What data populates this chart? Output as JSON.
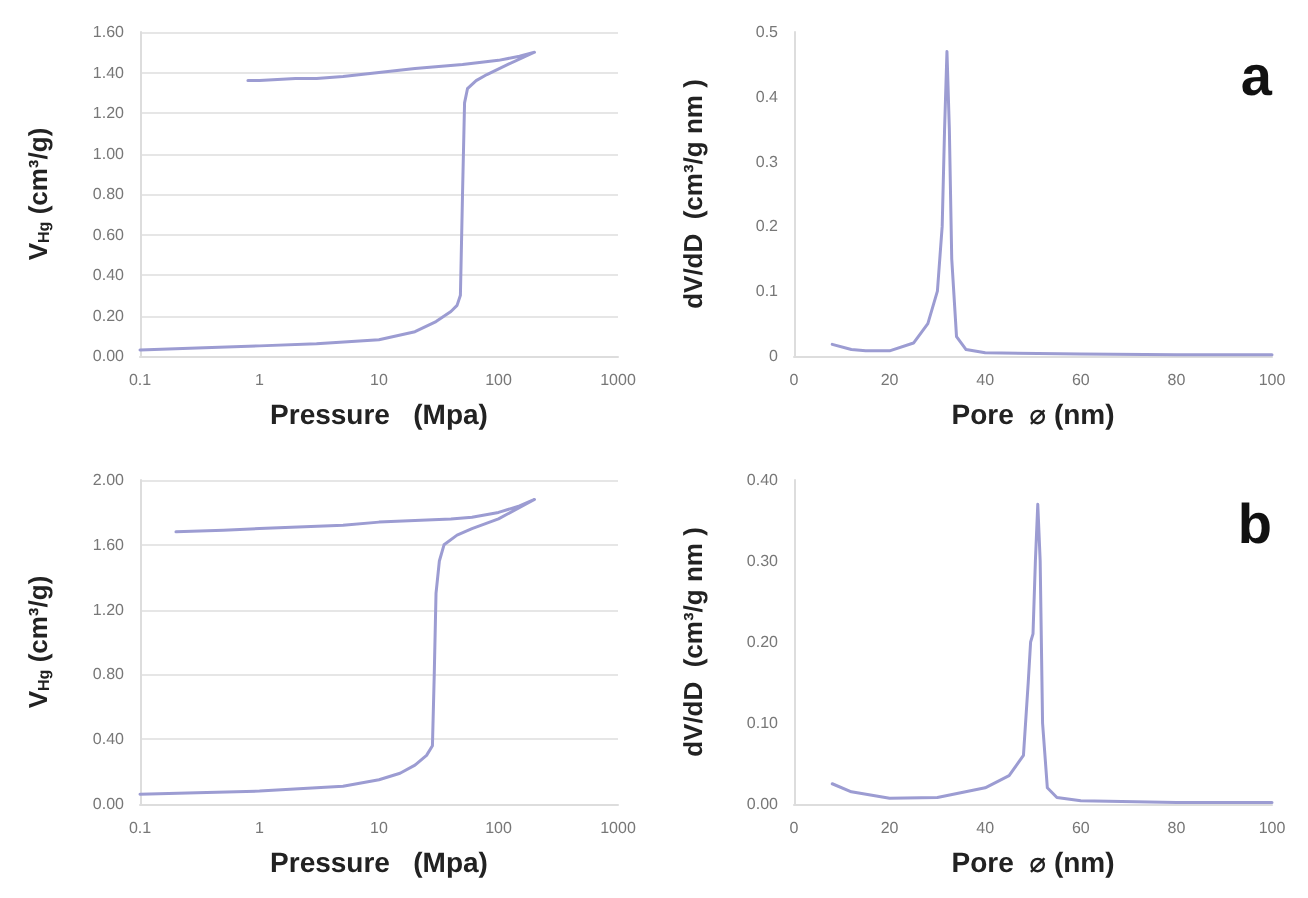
{
  "chart_data": [
    {
      "type": "line",
      "xlabel": "Pressure   (Mpa)",
      "ylabel": "V$_{Hg}$ (cm³/g)",
      "log": "x",
      "grid": "y",
      "marker": "none",
      "line_style": "solid",
      "xlim": [
        0.1,
        1000
      ],
      "xticks": [
        0.1,
        1,
        10,
        100,
        1000
      ],
      "ylim": [
        0,
        1.6
      ],
      "yticks": [
        {
          "value": 0,
          "label": "0.00"
        },
        {
          "value": 0.2,
          "label": "0.20"
        },
        {
          "value": 0.4,
          "label": "0.40"
        },
        {
          "value": 0.6,
          "label": "0.60"
        },
        {
          "value": 0.8,
          "label": "0.80"
        },
        {
          "value": 1,
          "label": "1.00"
        },
        {
          "value": 1.2,
          "label": "1.20"
        },
        {
          "value": 1.4,
          "label": "1.40"
        },
        {
          "value": 1.6,
          "label": "1.60"
        }
      ],
      "series": [
        {
          "color": "#9c9cd2",
          "x": [
            0.1,
            0.3,
            1,
            3,
            10,
            20,
            30,
            40,
            45,
            48,
            50,
            52,
            55,
            65,
            80,
            120,
            200,
            150,
            100,
            50,
            20,
            10,
            5,
            3,
            2,
            1,
            0.8
          ],
          "values": [
            0.03,
            0.04,
            0.05,
            0.06,
            0.08,
            0.12,
            0.17,
            0.22,
            0.25,
            0.3,
            0.8,
            1.25,
            1.32,
            1.36,
            1.39,
            1.44,
            1.5,
            1.48,
            1.46,
            1.44,
            1.42,
            1.4,
            1.38,
            1.37,
            1.37,
            1.36,
            1.36
          ]
        }
      ]
    },
    {
      "type": "line",
      "xlabel": "Pore  ⌀ (nm)",
      "ylabel": "dV/dD  (cm³/g nm )",
      "grid": false,
      "marker": "none",
      "line_style": "solid",
      "xlim": [
        0,
        100
      ],
      "xticks": [
        0,
        20,
        40,
        60,
        80,
        100
      ],
      "ylim": [
        0,
        0.5
      ],
      "yticks": [
        0,
        0.1,
        0.2,
        0.3,
        0.4,
        0.5
      ],
      "annotations": [
        "a"
      ],
      "series": [
        {
          "color": "#9c9cd2",
          "x": [
            8,
            12,
            15,
            20,
            25,
            28,
            30,
            31,
            31.5,
            32,
            32.5,
            33,
            34,
            36,
            40,
            60,
            80,
            100
          ],
          "values": [
            0.018,
            0.01,
            0.008,
            0.008,
            0.02,
            0.05,
            0.1,
            0.2,
            0.35,
            0.47,
            0.35,
            0.15,
            0.03,
            0.01,
            0.005,
            0.003,
            0.002,
            0.002
          ]
        }
      ]
    },
    {
      "type": "line",
      "xlabel": "Pressure   (Mpa)",
      "ylabel": "V$_{Hg}$ (cm³/g)",
      "log": "x",
      "grid": "y",
      "marker": "none",
      "line_style": "solid",
      "xlim": [
        0.1,
        1000
      ],
      "xticks": [
        0.1,
        1,
        10,
        100,
        1000
      ],
      "ylim": [
        0,
        2
      ],
      "yticks": [
        {
          "value": 0,
          "label": "0.00"
        },
        {
          "value": 0.4,
          "label": "0.40"
        },
        {
          "value": 0.8,
          "label": "0.80"
        },
        {
          "value": 1.2,
          "label": "1.20"
        },
        {
          "value": 1.6,
          "label": "1.60"
        },
        {
          "value": 2,
          "label": "2.00"
        }
      ],
      "series": [
        {
          "color": "#9c9cd2",
          "x": [
            0.1,
            0.3,
            1,
            3,
            5,
            10,
            15,
            20,
            25,
            28,
            29,
            30,
            32,
            35,
            45,
            60,
            100,
            200,
            150,
            100,
            60,
            40,
            20,
            10,
            5,
            1,
            0.5,
            0.2
          ],
          "values": [
            0.06,
            0.07,
            0.08,
            0.1,
            0.11,
            0.15,
            0.19,
            0.24,
            0.3,
            0.36,
            0.8,
            1.3,
            1.5,
            1.6,
            1.66,
            1.7,
            1.76,
            1.88,
            1.84,
            1.8,
            1.77,
            1.76,
            1.75,
            1.74,
            1.72,
            1.7,
            1.69,
            1.68
          ]
        }
      ]
    },
    {
      "type": "line",
      "xlabel": "Pore  ⌀ (nm)",
      "ylabel": "dV/dD  (cm³/g nm )",
      "grid": false,
      "marker": "none",
      "line_style": "solid",
      "xlim": [
        0,
        100
      ],
      "xticks": [
        0,
        20,
        40,
        60,
        80,
        100
      ],
      "ylim": [
        0,
        0.4
      ],
      "yticks": [
        {
          "value": 0,
          "label": "0.00"
        },
        {
          "value": 0.1,
          "label": "0.10"
        },
        {
          "value": 0.2,
          "label": "0.20"
        },
        {
          "value": 0.3,
          "label": "0.30"
        },
        {
          "value": 0.4,
          "label": "0.40"
        }
      ],
      "annotations": [
        "b"
      ],
      "series": [
        {
          "color": "#9c9cd2",
          "x": [
            8,
            12,
            20,
            30,
            40,
            45,
            48,
            49,
            49.5,
            50,
            50.5,
            51,
            51.5,
            52,
            53,
            55,
            60,
            80,
            100
          ],
          "values": [
            0.025,
            0.015,
            0.007,
            0.008,
            0.02,
            0.035,
            0.06,
            0.15,
            0.2,
            0.21,
            0.3,
            0.37,
            0.3,
            0.1,
            0.02,
            0.008,
            0.004,
            0.002,
            0.002
          ]
        }
      ]
    }
  ]
}
